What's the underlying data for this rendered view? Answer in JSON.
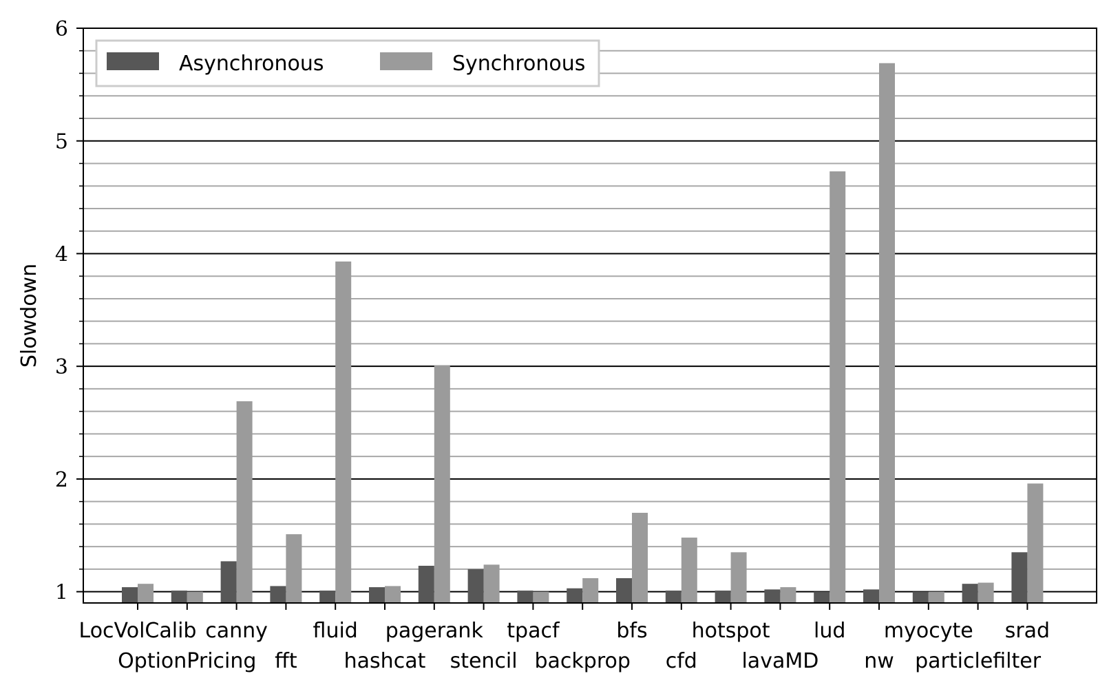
{
  "chart_data": {
    "type": "bar",
    "title": "",
    "xlabel": "",
    "ylabel": "Slowdown",
    "ylim": [
      0.9,
      6.0
    ],
    "yticks": [
      "1",
      "2",
      "3",
      "4",
      "5",
      "6"
    ],
    "minor_grid_step": 0.2,
    "legend_position": "top-left",
    "categories": [
      "LocVolCalib",
      "OptionPricing",
      "canny",
      "fft",
      "fluid",
      "hashcat",
      "pagerank",
      "stencil",
      "tpacf",
      "backprop",
      "bfs",
      "cfd",
      "hotspot",
      "lavaMD",
      "lud",
      "nw",
      "myocyte",
      "particlefilter",
      "srad"
    ],
    "series": [
      {
        "name": "Asynchronous",
        "color": "#575757",
        "values": [
          1.04,
          1.01,
          1.27,
          1.05,
          1.01,
          1.04,
          1.23,
          1.2,
          1.01,
          1.03,
          1.12,
          1.01,
          1.01,
          1.02,
          1.0,
          1.02,
          1.0,
          1.07,
          1.35
        ]
      },
      {
        "name": "Synchronous",
        "color": "#9b9b9b",
        "values": [
          1.07,
          1.0,
          2.69,
          1.51,
          3.93,
          1.05,
          3.01,
          1.24,
          1.0,
          1.12,
          1.7,
          1.48,
          1.35,
          1.04,
          4.73,
          5.69,
          1.0,
          1.08,
          1.96
        ]
      }
    ]
  }
}
